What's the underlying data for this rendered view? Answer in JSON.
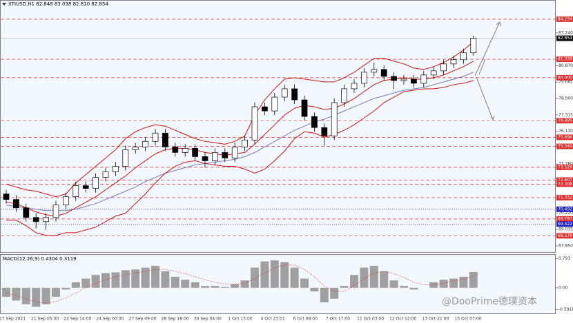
{
  "chart_data": [
    {
      "type": "candlestick",
      "title": "XTIUSD,H1  82.848 83.038 82.810 82.854",
      "open": [
        71.6,
        71.2,
        70.6,
        69.9,
        69.6,
        69.9,
        70.8,
        71.4,
        72.2,
        72.0,
        72.8,
        73.2,
        73.6,
        74.8,
        75.0,
        75.4,
        76.0,
        75.0,
        74.6,
        74.9,
        74.3,
        74.0,
        74.6,
        74.2,
        75.0,
        75.5,
        77.9,
        77.6,
        78.6,
        79.2,
        78.4,
        77.2,
        76.4,
        75.8,
        78.2,
        79.2,
        79.6,
        80.4,
        80.6,
        80.1,
        79.8,
        79.9,
        79.6,
        80.2,
        80.5,
        81.0,
        81.3,
        81.8
      ],
      "high": [
        71.9,
        71.5,
        70.9,
        70.2,
        70.2,
        71.1,
        71.7,
        72.5,
        72.5,
        73.1,
        73.5,
        73.9,
        75.1,
        75.3,
        75.7,
        76.3,
        76.3,
        75.3,
        75.2,
        75.2,
        74.6,
        74.9,
        74.9,
        75.3,
        75.8,
        78.2,
        78.2,
        78.9,
        79.5,
        79.5,
        78.7,
        77.5,
        76.7,
        78.5,
        79.5,
        79.9,
        80.7,
        81.1,
        80.9,
        80.4,
        80.2,
        80.2,
        80.5,
        80.8,
        81.3,
        81.6,
        82.1,
        83.038
      ],
      "low": [
        70.9,
        70.3,
        69.6,
        69.1,
        69.0,
        69.6,
        70.5,
        71.1,
        71.7,
        71.7,
        72.5,
        72.9,
        73.3,
        74.5,
        74.7,
        75.1,
        74.7,
        74.3,
        74.3,
        74.0,
        73.5,
        73.7,
        73.9,
        73.9,
        74.7,
        75.2,
        77.3,
        77.3,
        78.3,
        78.1,
        76.9,
        76.1,
        75.1,
        75.5,
        77.9,
        78.9,
        79.3,
        80.1,
        79.8,
        79.2,
        79.5,
        79.3,
        79.3,
        79.9,
        80.2,
        80.7,
        81.0,
        81.6
      ],
      "close": [
        71.2,
        70.6,
        69.9,
        69.6,
        69.9,
        70.8,
        71.4,
        72.2,
        72.0,
        72.8,
        73.2,
        73.6,
        74.8,
        75.0,
        75.4,
        76.0,
        75.0,
        74.6,
        74.9,
        74.3,
        74.0,
        74.6,
        74.2,
        75.0,
        75.5,
        77.9,
        77.6,
        78.6,
        79.2,
        78.4,
        77.2,
        76.4,
        75.8,
        78.2,
        79.2,
        79.6,
        80.4,
        80.6,
        80.1,
        79.8,
        79.9,
        79.6,
        80.2,
        80.5,
        81.0,
        81.3,
        81.8,
        82.854
      ],
      "upper": [
        72.3,
        72.1,
        71.9,
        71.8,
        71.6,
        71.4,
        71.6,
        72.4,
        73.0,
        73.6,
        74.2,
        74.8,
        75.6,
        76.1,
        76.4,
        76.6,
        76.5,
        76.2,
        75.9,
        75.6,
        75.4,
        75.3,
        75.2,
        75.4,
        75.8,
        77.3,
        78.4,
        79.2,
        79.9,
        80.0,
        79.9,
        79.8,
        79.7,
        79.7,
        80.0,
        80.4,
        80.9,
        81.4,
        81.4,
        81.2,
        81.0,
        80.7,
        80.6,
        80.8,
        81.1,
        81.5,
        82.0,
        82.6
      ],
      "middle": [
        71.0,
        70.9,
        70.6,
        70.3,
        70.1,
        70.0,
        70.2,
        70.6,
        71.0,
        71.4,
        71.9,
        72.4,
        72.9,
        73.5,
        74.0,
        74.5,
        74.8,
        74.9,
        74.9,
        74.8,
        74.6,
        74.5,
        74.4,
        74.5,
        74.6,
        75.2,
        75.9,
        76.6,
        77.3,
        77.8,
        78.0,
        77.9,
        77.7,
        77.8,
        78.1,
        78.5,
        79.0,
        79.5,
        79.8,
        79.9,
        80.0,
        79.9,
        79.9,
        80.0,
        80.2,
        80.5,
        80.8,
        81.2
      ],
      "lower": [
        69.7,
        69.7,
        69.3,
        68.8,
        68.6,
        68.6,
        68.8,
        68.8,
        69.0,
        69.2,
        69.6,
        70.0,
        70.2,
        70.9,
        71.6,
        72.4,
        73.1,
        73.6,
        73.9,
        74.0,
        73.8,
        73.7,
        73.6,
        73.6,
        73.4,
        73.1,
        73.4,
        74.0,
        74.7,
        75.6,
        76.1,
        76.0,
        75.7,
        75.9,
        76.2,
        76.6,
        77.1,
        77.6,
        78.2,
        78.6,
        79.0,
        79.1,
        79.2,
        79.2,
        79.3,
        79.5,
        79.6,
        79.8
      ],
      "ma": [
        70.8,
        70.7,
        70.6,
        70.5,
        70.4,
        70.4,
        70.4,
        70.5,
        70.7,
        70.9,
        71.2,
        71.5,
        71.8,
        72.1,
        72.5,
        72.8,
        73.1,
        73.3,
        73.5,
        73.7,
        73.8,
        73.9,
        74.0,
        74.1,
        74.3,
        74.6,
        75.0,
        75.4,
        75.8,
        76.2,
        76.5,
        76.8,
        77.0,
        77.3,
        77.6,
        77.9,
        78.2,
        78.5,
        78.7,
        78.9,
        79.1,
        79.2,
        79.3,
        79.5,
        79.7,
        79.9,
        80.1,
        80.4
      ],
      "up_color": "#ffffff",
      "down_color": "#000000",
      "band_color": "#d01010",
      "ma_color": "#7878c0",
      "ylim": [
        67.4,
        85.57
      ],
      "yticks": [
        {
          "value": 83.24,
          "label": "83.240"
        },
        {
          "value": 80.87,
          "label": "80.870"
        },
        {
          "value": 79.685,
          "label": "79.685"
        },
        {
          "value": 78.5,
          "label": "78.500"
        },
        77.315,
        {
          "value": 76.13,
          "label": "76.130"
        },
        {
          "value": 73.76,
          "label": "73.760"
        },
        {
          "value": 70.22,
          "label": "70.220"
        },
        69.035,
        {
          "value": 67.85,
          "label": "67.850"
        }
      ],
      "levels": [
        {
          "value": 84.234,
          "label": "84.234",
          "color": "#e03030"
        },
        {
          "value": 81.339,
          "label": "81.339",
          "color": "#e03030"
        },
        {
          "value": 80,
          "label": "80.000",
          "color": "#e03030"
        },
        {
          "value": 76.899,
          "label": "76.899",
          "color": "#e03030"
        },
        {
          "value": 75.696,
          "label": "75.696",
          "color": "#e03030"
        },
        {
          "value": 75.04,
          "label": "75.040",
          "color": "#e03030"
        },
        {
          "value": 73.529,
          "label": "73.529",
          "color": "#e03030"
        },
        {
          "value": 72.607,
          "label": "72.607",
          "color": "#e03030"
        },
        {
          "value": 72.308,
          "label": "72.308",
          "color": "#e03030"
        },
        {
          "value": 71.332,
          "label": "71.332",
          "color": "#e03030"
        },
        {
          "value": 70.492,
          "label": "70.492",
          "color": "#2020c0"
        },
        {
          "value": 69.797,
          "label": "69.797",
          "color": "#e03030"
        },
        {
          "value": 69.422,
          "label": "69.422",
          "color": "#2020c0"
        },
        {
          "value": 68.579,
          "label": "68.579",
          "color": "#e03030"
        }
      ],
      "last": {
        "value": 82.854,
        "label": "82.854"
      },
      "xtick_labels": [
        "17 Sep 2021",
        "21 Sep 05:00",
        "22 Sep 14:00",
        "24 Sep 00:00",
        "27 Sep 09:00",
        "28 Sep 18:00",
        "30 Sep 04:00",
        "1 Oct 13:00",
        "4 Oct 23:01",
        "6 Oct 08:00",
        "7 Oct 17:00",
        "11 Oct 03:00",
        "12 Oct 12:00",
        "13 Oct 21:00",
        "15 Oct 07:00"
      ]
    },
    {
      "type": "macd",
      "title": "MACD(12,26,9) 0.4304 0.3119",
      "values": [
        -0.25,
        -0.35,
        -0.45,
        -0.52,
        -0.45,
        -0.25,
        -0.05,
        0.15,
        0.25,
        0.35,
        0.4,
        0.42,
        0.48,
        0.5,
        0.55,
        0.6,
        0.45,
        0.3,
        0.22,
        0.15,
        0.05,
        0.05,
        0.02,
        0.1,
        0.2,
        0.55,
        0.72,
        0.75,
        0.7,
        0.55,
        0.25,
        -0.1,
        -0.4,
        -0.3,
        0.05,
        0.35,
        0.55,
        0.6,
        0.45,
        0.2,
        0.05,
        -0.05,
        0.0,
        0.15,
        0.22,
        0.25,
        0.3,
        0.43
      ],
      "signal": [
        -0.15,
        -0.22,
        -0.3,
        -0.38,
        -0.42,
        -0.38,
        -0.28,
        -0.15,
        0.0,
        0.12,
        0.22,
        0.3,
        0.36,
        0.4,
        0.45,
        0.5,
        0.5,
        0.45,
        0.38,
        0.3,
        0.22,
        0.15,
        0.1,
        0.1,
        0.12,
        0.25,
        0.4,
        0.55,
        0.62,
        0.62,
        0.5,
        0.3,
        0.05,
        -0.1,
        -0.1,
        0.05,
        0.25,
        0.4,
        0.45,
        0.38,
        0.28,
        0.15,
        0.08,
        0.08,
        0.12,
        0.18,
        0.24,
        0.31
      ],
      "hist_color": "#a0a0a0",
      "signal_color": "#e03030",
      "ylim": [
        -0.7,
        0.9
      ],
      "yticks": [
        0.793,
        {
          "value": 0,
          "label": "0.00"
        },
        -0.5918
      ]
    }
  ],
  "watermark": "@DooPrime德璞资本"
}
